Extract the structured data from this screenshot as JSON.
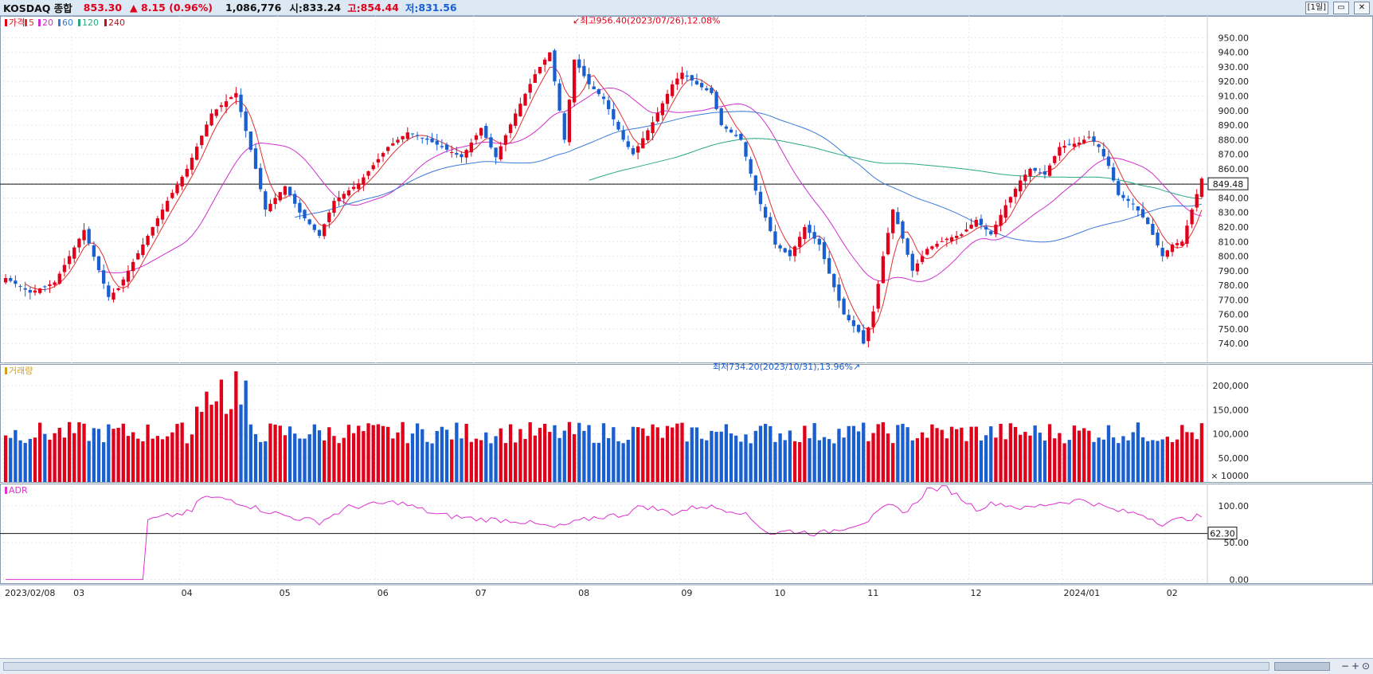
{
  "header": {
    "symbol": "KOSDAQ 종합",
    "price": "853.30",
    "change": "▲ 8.15 (0.96%)",
    "volume": "1,086,776",
    "open_label": "시:",
    "open_value": "833.24",
    "high_label": "고:",
    "high_value": "854.44",
    "low_label": "저:",
    "low_value": "831.56",
    "period_button": "[1일]"
  },
  "colors": {
    "up": "#e0001a",
    "down": "#1a5fd0",
    "ma5": "#e03030",
    "ma20": "#d030d0",
    "ma60": "#3a7ad8",
    "ma120": "#2aa880",
    "ma240": "#c01020",
    "adr": "#e030d0"
  },
  "chart_data": [
    {
      "type": "candlestick",
      "panel": "price",
      "legend": [
        {
          "label": "가격",
          "color": "#e0001a"
        },
        {
          "label": "5",
          "color": "#e03030"
        },
        {
          "label": "20",
          "color": "#d030d0"
        },
        {
          "label": "60",
          "color": "#3a7ad8"
        },
        {
          "label": "120",
          "color": "#2aa880"
        },
        {
          "label": "240",
          "color": "#c01020"
        }
      ],
      "ylim": [
        727,
        965
      ],
      "y_ticks": [
        740,
        750,
        760,
        770,
        780,
        790,
        800,
        810,
        820,
        830,
        840,
        850,
        860,
        870,
        880,
        890,
        900,
        910,
        920,
        930,
        940,
        950
      ],
      "y_tick_labels": [
        "740.00",
        "750.00",
        "760.00",
        "770.00",
        "780.00",
        "790.00",
        "800.00",
        "810.00",
        "820.00",
        "830.00",
        "840.00",
        "850.00",
        "860.00",
        "870.00",
        "880.00",
        "890.00",
        "900.00",
        "910.00",
        "920.00",
        "930.00",
        "940.00",
        "950.00"
      ],
      "x_labels": [
        {
          "index": 0,
          "label": "2023/02/08"
        },
        {
          "index": 14,
          "label": "03"
        },
        {
          "index": 36,
          "label": "04"
        },
        {
          "index": 56,
          "label": "05"
        },
        {
          "index": 76,
          "label": "06"
        },
        {
          "index": 96,
          "label": "07"
        },
        {
          "index": 117,
          "label": "08"
        },
        {
          "index": 138,
          "label": "09"
        },
        {
          "index": 157,
          "label": "10"
        },
        {
          "index": 176,
          "label": "11"
        },
        {
          "index": 197,
          "label": "12"
        },
        {
          "index": 216,
          "label": "2024/01"
        },
        {
          "index": 237,
          "label": "02"
        }
      ],
      "key_points": [
        {
          "index": 0,
          "value": 785
        },
        {
          "index": 5,
          "value": 775
        },
        {
          "index": 10,
          "value": 782
        },
        {
          "index": 16,
          "value": 818
        },
        {
          "index": 21,
          "value": 772
        },
        {
          "index": 23,
          "value": 778
        },
        {
          "index": 28,
          "value": 808
        },
        {
          "index": 33,
          "value": 838
        },
        {
          "index": 37,
          "value": 860
        },
        {
          "index": 42,
          "value": 898
        },
        {
          "index": 47,
          "value": 912
        },
        {
          "index": 51,
          "value": 860
        },
        {
          "index": 53,
          "value": 832
        },
        {
          "index": 57,
          "value": 848
        },
        {
          "index": 60,
          "value": 830
        },
        {
          "index": 64,
          "value": 814
        },
        {
          "index": 67,
          "value": 838
        },
        {
          "index": 72,
          "value": 850
        },
        {
          "index": 78,
          "value": 875
        },
        {
          "index": 82,
          "value": 885
        },
        {
          "index": 86,
          "value": 880
        },
        {
          "index": 93,
          "value": 868
        },
        {
          "index": 97,
          "value": 888
        },
        {
          "index": 100,
          "value": 868
        },
        {
          "index": 104,
          "value": 898
        },
        {
          "index": 108,
          "value": 925
        },
        {
          "index": 111,
          "value": 940
        },
        {
          "index": 114,
          "value": 880
        },
        {
          "index": 116,
          "value": 935
        },
        {
          "index": 119,
          "value": 918
        },
        {
          "index": 122,
          "value": 908
        },
        {
          "index": 126,
          "value": 880
        },
        {
          "index": 128,
          "value": 870
        },
        {
          "index": 132,
          "value": 892
        },
        {
          "index": 136,
          "value": 918
        },
        {
          "index": 138,
          "value": 926
        },
        {
          "index": 141,
          "value": 918
        },
        {
          "index": 144,
          "value": 912
        },
        {
          "index": 146,
          "value": 890
        },
        {
          "index": 150,
          "value": 880
        },
        {
          "index": 153,
          "value": 845
        },
        {
          "index": 157,
          "value": 808
        },
        {
          "index": 160,
          "value": 800
        },
        {
          "index": 163,
          "value": 820
        },
        {
          "index": 166,
          "value": 808
        },
        {
          "index": 168,
          "value": 788
        },
        {
          "index": 171,
          "value": 760
        },
        {
          "index": 174,
          "value": 748
        },
        {
          "index": 175,
          "value": 740
        },
        {
          "index": 177,
          "value": 762
        },
        {
          "index": 179,
          "value": 800
        },
        {
          "index": 181,
          "value": 832
        },
        {
          "index": 183,
          "value": 812
        },
        {
          "index": 185,
          "value": 790
        },
        {
          "index": 188,
          "value": 805
        },
        {
          "index": 192,
          "value": 812
        },
        {
          "index": 195,
          "value": 815
        },
        {
          "index": 198,
          "value": 825
        },
        {
          "index": 201,
          "value": 815
        },
        {
          "index": 204,
          "value": 835
        },
        {
          "index": 207,
          "value": 852
        },
        {
          "index": 209,
          "value": 860
        },
        {
          "index": 212,
          "value": 856
        },
        {
          "index": 215,
          "value": 875
        },
        {
          "index": 219,
          "value": 878
        },
        {
          "index": 221,
          "value": 882
        },
        {
          "index": 223,
          "value": 875
        },
        {
          "index": 225,
          "value": 862
        },
        {
          "index": 227,
          "value": 842
        },
        {
          "index": 230,
          "value": 836
        },
        {
          "index": 233,
          "value": 822
        },
        {
          "index": 236,
          "value": 800
        },
        {
          "index": 238,
          "value": 808
        },
        {
          "index": 240,
          "value": 810
        },
        {
          "index": 242,
          "value": 832
        },
        {
          "index": 244,
          "value": 853.3
        }
      ],
      "candle_count": 245,
      "annotations": {
        "high": "최고956.40(2023/07/26),12.08%",
        "low": "최저734.20(2023/10/31),13.96%"
      },
      "reference_line": {
        "value": 849.48,
        "label": "849.48"
      }
    },
    {
      "type": "bar",
      "panel": "volume",
      "legend": [
        {
          "label": "거래량",
          "color": "#d4a020"
        }
      ],
      "ylim": [
        0,
        245000
      ],
      "y_ticks": [
        50000,
        100000,
        150000,
        200000
      ],
      "y_tick_labels": [
        "50,000",
        "100,000",
        "150,000",
        "200,000"
      ],
      "unit_label": "× 10000",
      "baseline": 100000,
      "peak_value": 230000
    },
    {
      "type": "line",
      "panel": "ADR",
      "legend": [
        {
          "label": "ADR",
          "color": "#e030d0"
        }
      ],
      "ylim": [
        -5,
        130
      ],
      "y_ticks": [
        0,
        50,
        100
      ],
      "y_tick_labels": [
        "0.00",
        "50.00",
        "100.00"
      ],
      "reference_line": {
        "value": 62.3,
        "label": "62.30"
      },
      "key_points": [
        {
          "index": 0,
          "value": 0
        },
        {
          "index": 28,
          "value": 0
        },
        {
          "index": 29,
          "value": 80
        },
        {
          "index": 33,
          "value": 86
        },
        {
          "index": 38,
          "value": 92
        },
        {
          "index": 40,
          "value": 112
        },
        {
          "index": 46,
          "value": 108
        },
        {
          "index": 52,
          "value": 95
        },
        {
          "index": 58,
          "value": 85
        },
        {
          "index": 64,
          "value": 78
        },
        {
          "index": 70,
          "value": 98
        },
        {
          "index": 80,
          "value": 105
        },
        {
          "index": 88,
          "value": 88
        },
        {
          "index": 96,
          "value": 82
        },
        {
          "index": 104,
          "value": 80
        },
        {
          "index": 112,
          "value": 70
        },
        {
          "index": 120,
          "value": 84
        },
        {
          "index": 126,
          "value": 88
        },
        {
          "index": 130,
          "value": 100
        },
        {
          "index": 136,
          "value": 90
        },
        {
          "index": 142,
          "value": 100
        },
        {
          "index": 150,
          "value": 92
        },
        {
          "index": 156,
          "value": 62
        },
        {
          "index": 160,
          "value": 66
        },
        {
          "index": 166,
          "value": 62
        },
        {
          "index": 172,
          "value": 72
        },
        {
          "index": 176,
          "value": 80
        },
        {
          "index": 180,
          "value": 100
        },
        {
          "index": 184,
          "value": 92
        },
        {
          "index": 188,
          "value": 122
        },
        {
          "index": 192,
          "value": 124
        },
        {
          "index": 198,
          "value": 96
        },
        {
          "index": 202,
          "value": 104
        },
        {
          "index": 208,
          "value": 96
        },
        {
          "index": 214,
          "value": 104
        },
        {
          "index": 220,
          "value": 108
        },
        {
          "index": 226,
          "value": 94
        },
        {
          "index": 232,
          "value": 88
        },
        {
          "index": 236,
          "value": 76
        },
        {
          "index": 240,
          "value": 82
        },
        {
          "index": 244,
          "value": 86
        }
      ]
    }
  ],
  "footer": {
    "zoom_minus": "−",
    "zoom_plus": "+",
    "zoom_reset": "⊙"
  }
}
